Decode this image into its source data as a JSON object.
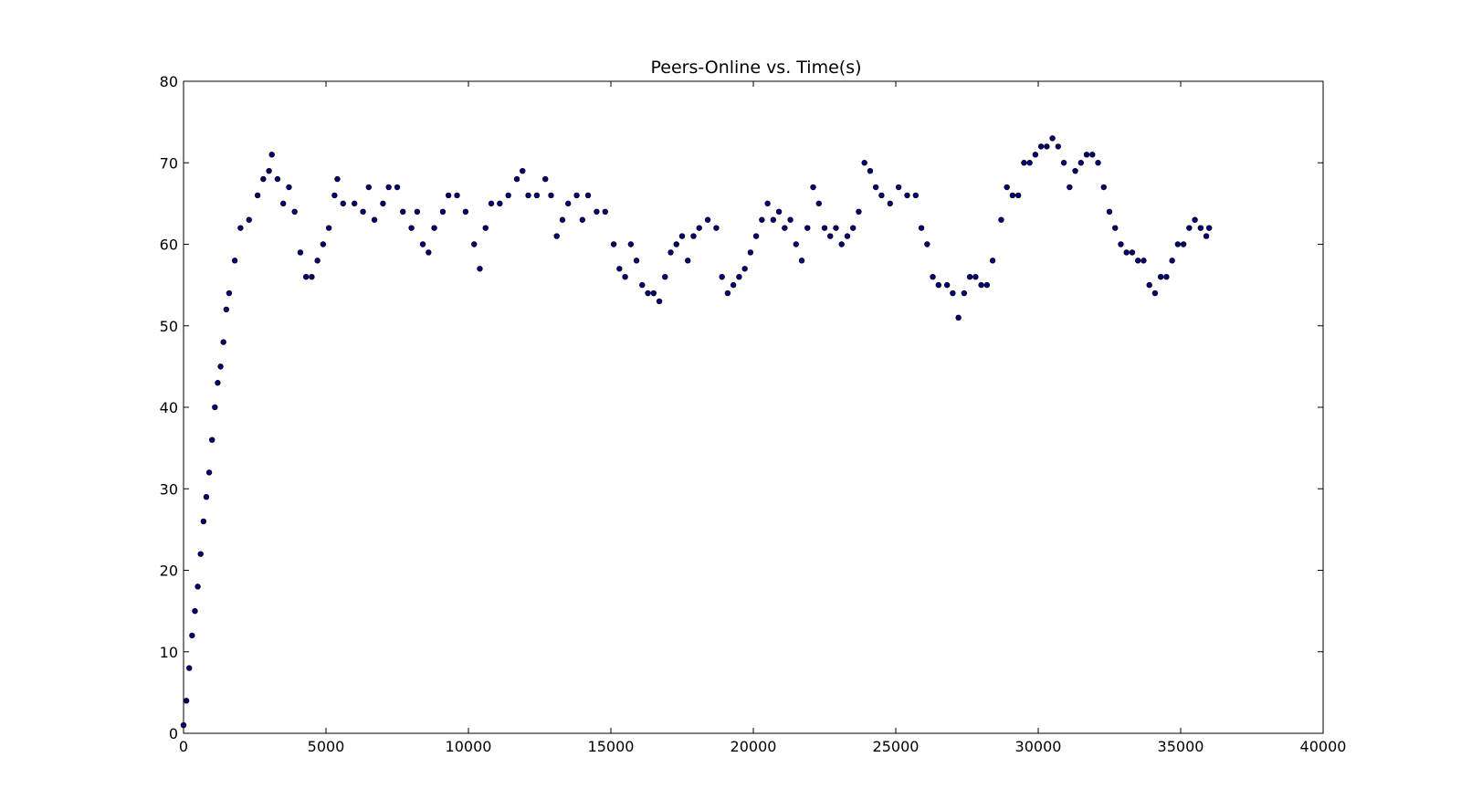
{
  "chart_data": {
    "type": "scatter",
    "title": "Peers-Online vs. Time(s)",
    "xlabel": "",
    "ylabel": "",
    "xlim": [
      0,
      40000
    ],
    "ylim": [
      0,
      80
    ],
    "xticks": [
      0,
      5000,
      10000,
      15000,
      20000,
      25000,
      30000,
      35000,
      40000
    ],
    "yticks": [
      0,
      10,
      20,
      30,
      40,
      50,
      60,
      70,
      80
    ],
    "grid": false,
    "legend": "none",
    "marker_color": "#000080",
    "marker_edge": "#000000",
    "series": [
      {
        "points": [
          [
            0,
            1
          ],
          [
            100,
            4
          ],
          [
            200,
            8
          ],
          [
            300,
            12
          ],
          [
            400,
            15
          ],
          [
            500,
            18
          ],
          [
            600,
            22
          ],
          [
            700,
            26
          ],
          [
            800,
            29
          ],
          [
            900,
            32
          ],
          [
            1000,
            36
          ],
          [
            1100,
            40
          ],
          [
            1200,
            43
          ],
          [
            1300,
            45
          ],
          [
            1400,
            48
          ],
          [
            1500,
            52
          ],
          [
            1600,
            54
          ],
          [
            1800,
            58
          ],
          [
            2000,
            62
          ],
          [
            2300,
            63
          ],
          [
            2600,
            66
          ],
          [
            2800,
            68
          ],
          [
            3000,
            69
          ],
          [
            3100,
            71
          ],
          [
            3300,
            68
          ],
          [
            3500,
            65
          ],
          [
            3700,
            67
          ],
          [
            3900,
            64
          ],
          [
            4100,
            59
          ],
          [
            4300,
            56
          ],
          [
            4500,
            56
          ],
          [
            4700,
            58
          ],
          [
            4900,
            60
          ],
          [
            5100,
            62
          ],
          [
            5300,
            66
          ],
          [
            5400,
            68
          ],
          [
            5600,
            65
          ],
          [
            6000,
            65
          ],
          [
            6300,
            64
          ],
          [
            6500,
            67
          ],
          [
            6700,
            63
          ],
          [
            7000,
            65
          ],
          [
            7200,
            67
          ],
          [
            7500,
            67
          ],
          [
            7700,
            64
          ],
          [
            8000,
            62
          ],
          [
            8200,
            64
          ],
          [
            8400,
            60
          ],
          [
            8600,
            59
          ],
          [
            8800,
            62
          ],
          [
            9100,
            64
          ],
          [
            9300,
            66
          ],
          [
            9600,
            66
          ],
          [
            9900,
            64
          ],
          [
            10200,
            60
          ],
          [
            10400,
            57
          ],
          [
            10600,
            62
          ],
          [
            10800,
            65
          ],
          [
            11100,
            65
          ],
          [
            11400,
            66
          ],
          [
            11700,
            68
          ],
          [
            11900,
            69
          ],
          [
            12100,
            66
          ],
          [
            12400,
            66
          ],
          [
            12700,
            68
          ],
          [
            12900,
            66
          ],
          [
            13100,
            61
          ],
          [
            13300,
            63
          ],
          [
            13500,
            65
          ],
          [
            13800,
            66
          ],
          [
            14000,
            63
          ],
          [
            14200,
            66
          ],
          [
            14500,
            64
          ],
          [
            14800,
            64
          ],
          [
            15100,
            60
          ],
          [
            15300,
            57
          ],
          [
            15500,
            56
          ],
          [
            15700,
            60
          ],
          [
            15900,
            58
          ],
          [
            16100,
            55
          ],
          [
            16300,
            54
          ],
          [
            16500,
            54
          ],
          [
            16700,
            53
          ],
          [
            16900,
            56
          ],
          [
            17100,
            59
          ],
          [
            17300,
            60
          ],
          [
            17500,
            61
          ],
          [
            17700,
            58
          ],
          [
            17900,
            61
          ],
          [
            18100,
            62
          ],
          [
            18400,
            63
          ],
          [
            18700,
            62
          ],
          [
            18900,
            56
          ],
          [
            19100,
            54
          ],
          [
            19300,
            55
          ],
          [
            19500,
            56
          ],
          [
            19700,
            57
          ],
          [
            19900,
            59
          ],
          [
            20100,
            61
          ],
          [
            20300,
            63
          ],
          [
            20500,
            65
          ],
          [
            20700,
            63
          ],
          [
            20900,
            64
          ],
          [
            21100,
            62
          ],
          [
            21300,
            63
          ],
          [
            21500,
            60
          ],
          [
            21700,
            58
          ],
          [
            21900,
            62
          ],
          [
            22100,
            67
          ],
          [
            22300,
            65
          ],
          [
            22500,
            62
          ],
          [
            22700,
            61
          ],
          [
            22900,
            62
          ],
          [
            23100,
            60
          ],
          [
            23300,
            61
          ],
          [
            23500,
            62
          ],
          [
            23700,
            64
          ],
          [
            23900,
            70
          ],
          [
            24100,
            69
          ],
          [
            24300,
            67
          ],
          [
            24500,
            66
          ],
          [
            24800,
            65
          ],
          [
            25100,
            67
          ],
          [
            25400,
            66
          ],
          [
            25700,
            66
          ],
          [
            25900,
            62
          ],
          [
            26100,
            60
          ],
          [
            26300,
            56
          ],
          [
            26500,
            55
          ],
          [
            26800,
            55
          ],
          [
            27000,
            54
          ],
          [
            27200,
            51
          ],
          [
            27400,
            54
          ],
          [
            27600,
            56
          ],
          [
            27800,
            56
          ],
          [
            28000,
            55
          ],
          [
            28200,
            55
          ],
          [
            28400,
            58
          ],
          [
            28700,
            63
          ],
          [
            28900,
            67
          ],
          [
            29100,
            66
          ],
          [
            29300,
            66
          ],
          [
            29500,
            70
          ],
          [
            29700,
            70
          ],
          [
            29900,
            71
          ],
          [
            30100,
            72
          ],
          [
            30300,
            72
          ],
          [
            30500,
            73
          ],
          [
            30700,
            72
          ],
          [
            30900,
            70
          ],
          [
            31100,
            67
          ],
          [
            31300,
            69
          ],
          [
            31500,
            70
          ],
          [
            31700,
            71
          ],
          [
            31900,
            71
          ],
          [
            32100,
            70
          ],
          [
            32300,
            67
          ],
          [
            32500,
            64
          ],
          [
            32700,
            62
          ],
          [
            32900,
            60
          ],
          [
            33100,
            59
          ],
          [
            33300,
            59
          ],
          [
            33500,
            58
          ],
          [
            33700,
            58
          ],
          [
            33900,
            55
          ],
          [
            34100,
            54
          ],
          [
            34300,
            56
          ],
          [
            34500,
            56
          ],
          [
            34700,
            58
          ],
          [
            34900,
            60
          ],
          [
            35100,
            60
          ],
          [
            35300,
            62
          ],
          [
            35500,
            63
          ],
          [
            35700,
            62
          ],
          [
            35900,
            61
          ],
          [
            36000,
            62
          ]
        ]
      }
    ]
  }
}
